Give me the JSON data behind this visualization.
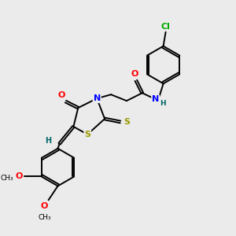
{
  "background_color": "#ebebeb",
  "bond_color": "#000000",
  "atom_colors": {
    "O": "#ff0000",
    "N": "#0000ff",
    "S": "#999900",
    "Cl": "#00aa00",
    "H": "#006666",
    "C": "#000000"
  },
  "figsize": [
    3.0,
    3.0
  ],
  "dpi": 100,
  "bond_lw": 1.4,
  "double_sep": 2.8,
  "font_size": 7.5
}
